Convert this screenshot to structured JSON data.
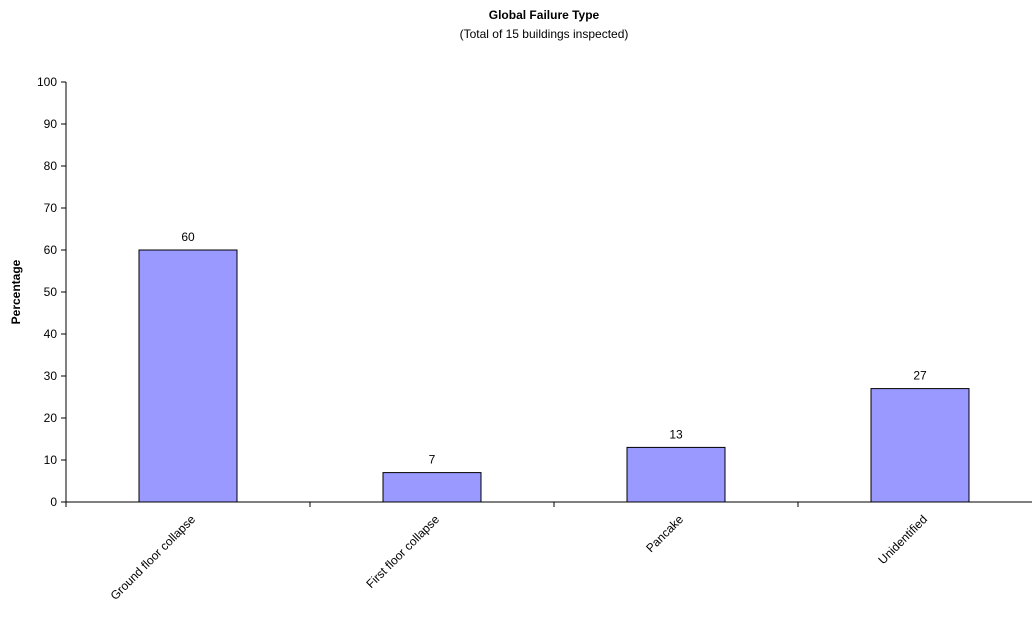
{
  "chart_data": {
    "type": "bar",
    "title": "Global Failure Type",
    "subtitle": "(Total of 15 buildings inspected)",
    "xlabel": "",
    "ylabel": "Percentage",
    "categories": [
      "Ground floor collapse",
      "First floor collapse",
      "Pancake",
      "Unidentified"
    ],
    "values": [
      60,
      7,
      13,
      27
    ],
    "data_labels": [
      "60",
      "7",
      "13",
      "27"
    ],
    "ylim": [
      0,
      100
    ],
    "yticks": [
      0,
      10,
      20,
      30,
      40,
      50,
      60,
      70,
      80,
      90,
      100
    ],
    "grid": false,
    "legend": "none",
    "bar_color": "#9999ff",
    "bar_edge_color": "#000000"
  }
}
